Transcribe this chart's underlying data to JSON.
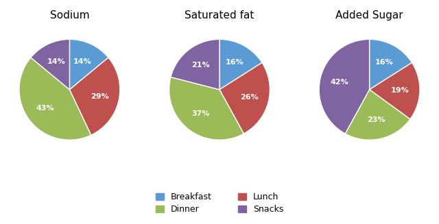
{
  "charts": [
    {
      "title": "Sodium",
      "values": [
        14,
        29,
        43,
        14
      ],
      "labels": [
        "Breakfast",
        "Lunch",
        "Dinner",
        "Snacks"
      ],
      "startangle": 90
    },
    {
      "title": "Saturated fat",
      "values": [
        16,
        26,
        37,
        21
      ],
      "labels": [
        "Breakfast",
        "Lunch",
        "Dinner",
        "Snacks"
      ],
      "startangle": 90
    },
    {
      "title": "Added Sugar",
      "values": [
        16,
        19,
        23,
        42
      ],
      "labels": [
        "Breakfast",
        "Lunch",
        "Dinner",
        "Snacks"
      ],
      "startangle": 90
    }
  ],
  "colors": {
    "Breakfast": "#5B9BD5",
    "Lunch": "#C0504D",
    "Dinner": "#9BBB59",
    "Snacks": "#8064A2"
  },
  "legend_order": [
    "Breakfast",
    "Dinner",
    "Lunch",
    "Snacks"
  ],
  "background_color": "#FFFFFF",
  "text_color": "#FFFFFF",
  "label_fontsize": 8,
  "title_fontsize": 11
}
